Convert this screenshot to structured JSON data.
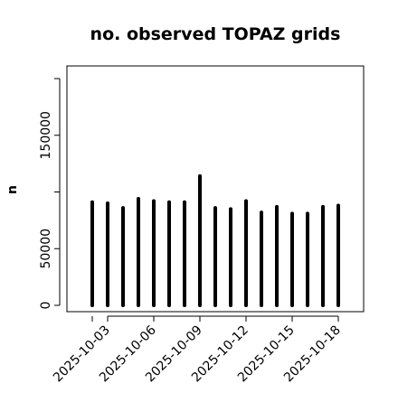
{
  "chart_data": {
    "type": "bar",
    "title": "no. observed TOPAZ grids",
    "ylabel": "n",
    "xlabel": "",
    "ylim": [
      0,
      200000
    ],
    "yticks": [
      0,
      50000,
      150000
    ],
    "ytick_labels": [
      "0",
      "50000",
      "150000"
    ],
    "x": [
      "2025-10-02",
      "2025-10-03",
      "2025-10-04",
      "2025-10-05",
      "2025-10-06",
      "2025-10-07",
      "2025-10-08",
      "2025-10-09",
      "2025-10-10",
      "2025-10-11",
      "2025-10-12",
      "2025-10-13",
      "2025-10-14",
      "2025-10-15",
      "2025-10-16",
      "2025-10-17",
      "2025-10-18"
    ],
    "values": [
      91000,
      90000,
      86000,
      94000,
      92000,
      91000,
      91000,
      114000,
      86000,
      85000,
      92000,
      82000,
      87000,
      81000,
      81000,
      87000,
      88000
    ],
    "xtick_labels": [
      {
        "label": "2025-10-03",
        "color": "#000000"
      },
      {
        "label": "2025-10-06",
        "color": "#000000"
      },
      {
        "label": "2025-10-09",
        "color": "#228B22"
      },
      {
        "label": "2025-10-12",
        "color": "#000000"
      },
      {
        "label": "2025-10-15",
        "color": "#000000"
      },
      {
        "label": "2025-10-18",
        "color": "#000000"
      }
    ],
    "bar_color": "#000000",
    "grid": false,
    "legend": "none"
  }
}
